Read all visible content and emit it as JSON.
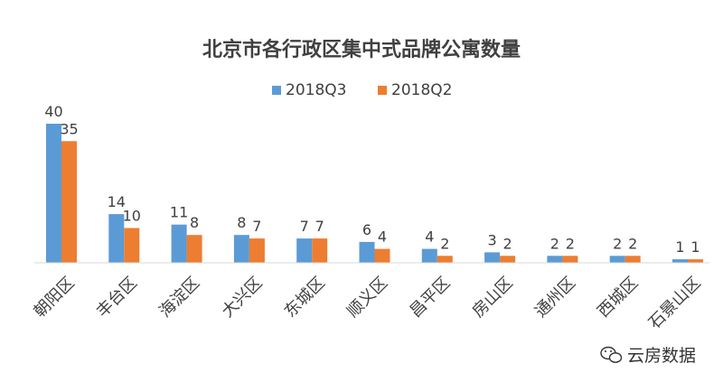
{
  "chart_data": {
    "type": "bar",
    "title": "北京市各行政区集中式品牌公寓数量",
    "categories": [
      "朝阳区",
      "丰台区",
      "海淀区",
      "大兴区",
      "东城区",
      "顺义区",
      "昌平区",
      "房山区",
      "通州区",
      "西城区",
      "石景山区"
    ],
    "series": [
      {
        "name": "2018Q3",
        "color": "#5B9BD5",
        "values": [
          40,
          14,
          11,
          8,
          7,
          6,
          4,
          3,
          2,
          2,
          1
        ]
      },
      {
        "name": "2018Q2",
        "color": "#ED7D31",
        "values": [
          35,
          10,
          8,
          7,
          7,
          4,
          2,
          2,
          2,
          2,
          1
        ]
      }
    ],
    "ylim": [
      0,
      40
    ],
    "grid": false,
    "legend_position": "top-center",
    "data_labels": true
  },
  "watermark": {
    "text": "云房数据",
    "icon": "wechat-logo-icon"
  }
}
